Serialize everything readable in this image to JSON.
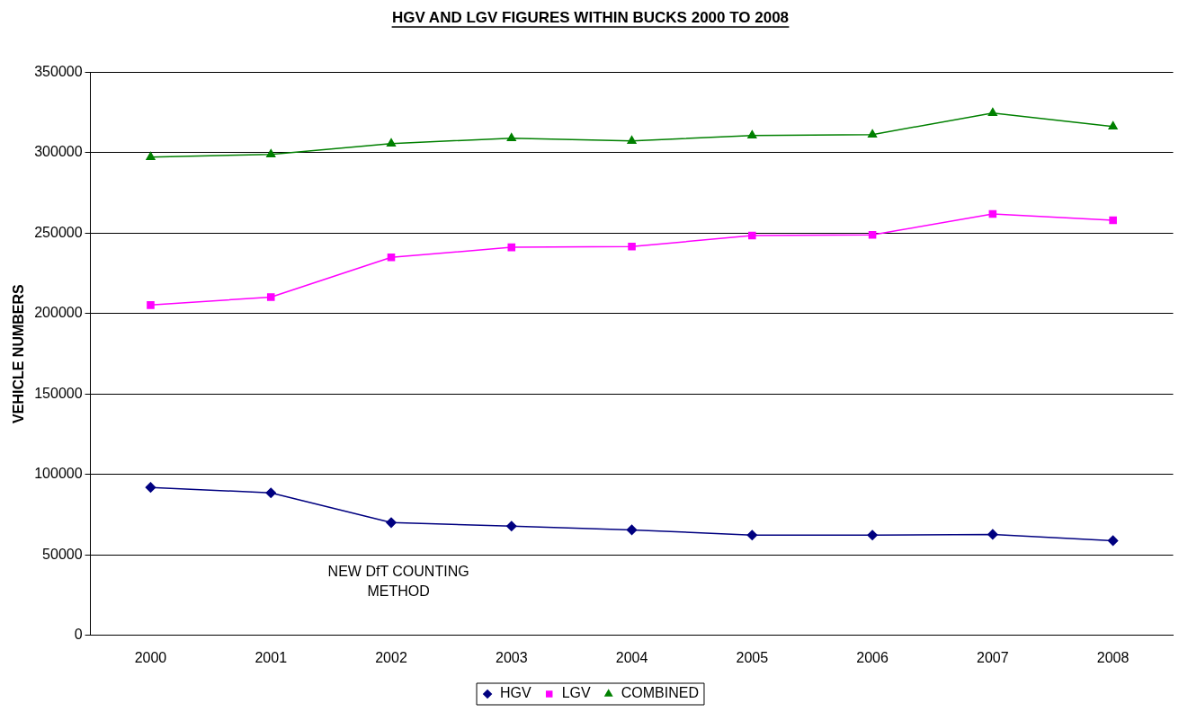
{
  "chart_data": {
    "type": "line",
    "title": "HGV AND LGV FIGURES WITHIN BUCKS 2000 TO 2008",
    "ylabel": "VEHICLE NUMBERS",
    "categories": [
      "2000",
      "2001",
      "2002",
      "2003",
      "2004",
      "2005",
      "2006",
      "2007",
      "2008"
    ],
    "series": [
      {
        "name": "HGV",
        "color": "#000080",
        "marker": "diamond",
        "values": [
          92000,
          88600,
          70100,
          67900,
          65600,
          62300,
          62300,
          62800,
          58900
        ]
      },
      {
        "name": "LGV",
        "color": "#ff00ff",
        "marker": "square",
        "values": [
          205300,
          210300,
          235000,
          241200,
          241700,
          248500,
          249000,
          261900,
          258000
        ]
      },
      {
        "name": "COMBINED",
        "color": "#008000",
        "marker": "triangle",
        "values": [
          297300,
          299000,
          305700,
          309000,
          307300,
          310700,
          311300,
          324700,
          316300
        ]
      }
    ],
    "ylim": [
      0,
      350000
    ],
    "yticks": [
      0,
      50000,
      100000,
      150000,
      200000,
      250000,
      300000,
      350000
    ],
    "grid": "y",
    "legend": "bottom",
    "line_style": "solid",
    "annotations": [
      "NEW DfT COUNTING METHOD"
    ]
  }
}
